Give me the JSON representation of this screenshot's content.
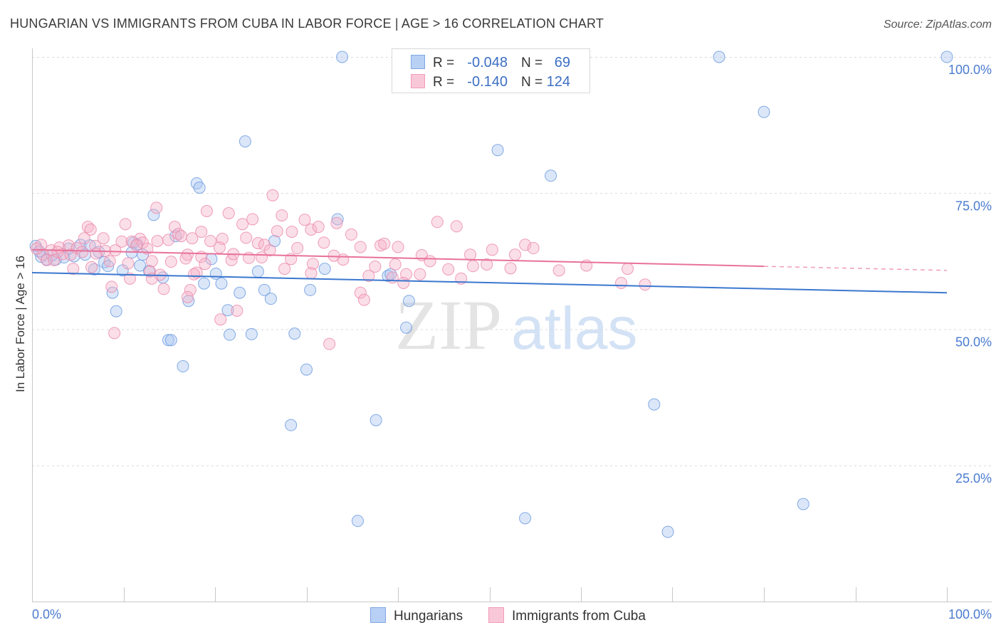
{
  "chart_data": {
    "type": "scatter",
    "title": "HUNGARIAN VS IMMIGRANTS FROM CUBA IN LABOR FORCE | AGE > 16 CORRELATION CHART",
    "source": "Source: ZipAtlas.com",
    "ylabel": "In Labor Force | Age > 16",
    "xlim": [
      0,
      100
    ],
    "ylim": [
      0,
      100
    ],
    "grid": true,
    "x_ticks": [
      10,
      20,
      30,
      40,
      50,
      60,
      70,
      80,
      90,
      100
    ],
    "x_tick_labels": [
      "0.0%",
      "100.0%"
    ],
    "y_ticks": [
      {
        "value": 100,
        "label": "100.0%"
      },
      {
        "value": 75,
        "label": "75.0%"
      },
      {
        "value": 50,
        "label": "50.0%"
      },
      {
        "value": 25,
        "label": "25.0%"
      }
    ],
    "legend": {
      "r_label": "R =",
      "n_label": "N ="
    },
    "watermark": {
      "zip": "ZIP",
      "atlas": "atlas"
    },
    "series": [
      {
        "name": "Hungarians",
        "r": "-0.048",
        "n": "69",
        "color": "#6e9ce0",
        "fill": "#a9c6f0",
        "trend_color": "#3b78cf",
        "trend": {
          "x": [
            0,
            100
          ],
          "y": [
            60.4,
            56.7
          ]
        },
        "points": [
          [
            33.9,
            100
          ],
          [
            75.1,
            100
          ],
          [
            100,
            100
          ],
          [
            80.0,
            89.9
          ],
          [
            50.9,
            82.9
          ],
          [
            23.3,
            84.5
          ],
          [
            56.7,
            78.2
          ],
          [
            18.0,
            76.8
          ],
          [
            18.3,
            76.0
          ],
          [
            13.3,
            71.0
          ],
          [
            33.4,
            70.2
          ],
          [
            26.5,
            66.2
          ],
          [
            0.4,
            65.3
          ],
          [
            5.3,
            65.5
          ],
          [
            6.3,
            65.4
          ],
          [
            7.3,
            64.2
          ],
          [
            11.1,
            65.9
          ],
          [
            11.5,
            65.6
          ],
          [
            10.9,
            64.1
          ],
          [
            12.1,
            63.7
          ],
          [
            15.7,
            67.1
          ],
          [
            1.0,
            63.3
          ],
          [
            1.6,
            62.8
          ],
          [
            2.6,
            62.8
          ],
          [
            3.5,
            63.2
          ],
          [
            4.6,
            63.4
          ],
          [
            5.8,
            63.7
          ],
          [
            7.9,
            62.3
          ],
          [
            8.3,
            61.6
          ],
          [
            6.8,
            61.0
          ],
          [
            9.9,
            60.8
          ],
          [
            11.8,
            61.7
          ],
          [
            12.8,
            60.7
          ],
          [
            14.3,
            59.5
          ],
          [
            19.6,
            62.9
          ],
          [
            20.1,
            60.2
          ],
          [
            18.8,
            58.4
          ],
          [
            20.7,
            58.4
          ],
          [
            24.7,
            60.6
          ],
          [
            32.0,
            61.1
          ],
          [
            38.9,
            59.8
          ],
          [
            8.8,
            56.7
          ],
          [
            22.7,
            56.7
          ],
          [
            25.4,
            57.2
          ],
          [
            26.1,
            55.6
          ],
          [
            30.4,
            57.2
          ],
          [
            17.1,
            55.2
          ],
          [
            41.2,
            55.2
          ],
          [
            9.2,
            53.3
          ],
          [
            21.4,
            53.5
          ],
          [
            14.9,
            48.0
          ],
          [
            15.2,
            48.0
          ],
          [
            21.6,
            49.0
          ],
          [
            24.0,
            49.1
          ],
          [
            28.7,
            49.2
          ],
          [
            40.9,
            50.3
          ],
          [
            16.5,
            43.2
          ],
          [
            30.0,
            42.6
          ],
          [
            28.3,
            32.4
          ],
          [
            37.6,
            33.3
          ],
          [
            68.0,
            36.2
          ],
          [
            35.6,
            14.8
          ],
          [
            53.9,
            15.3
          ],
          [
            69.5,
            12.8
          ],
          [
            84.3,
            17.9
          ],
          [
            0.8,
            64.3
          ],
          [
            2.2,
            63.6
          ],
          [
            4.0,
            64.8
          ],
          [
            39.2,
            60.1
          ]
        ]
      },
      {
        "name": "Immigrants from Cuba",
        "r": "-0.140",
        "n": "124",
        "color": "#ec8cae",
        "fill": "#f5b2c7",
        "trend_color": "#e8729a",
        "trend": {
          "x": [
            0,
            100
          ],
          "y": [
            64.6,
            60.8
          ],
          "solid_until": 80
        },
        "points": [
          [
            26.3,
            74.6
          ],
          [
            13.6,
            72.3
          ],
          [
            19.1,
            71.7
          ],
          [
            21.5,
            71.3
          ],
          [
            24.1,
            70.2
          ],
          [
            27.3,
            70.9
          ],
          [
            29.8,
            70.1
          ],
          [
            33.3,
            69.5
          ],
          [
            44.3,
            69.7
          ],
          [
            46.4,
            68.9
          ],
          [
            10.2,
            69.3
          ],
          [
            6.1,
            68.8
          ],
          [
            6.4,
            68.3
          ],
          [
            15.6,
            68.8
          ],
          [
            18.5,
            67.9
          ],
          [
            20.8,
            66.6
          ],
          [
            23.0,
            69.3
          ],
          [
            28.4,
            67.9
          ],
          [
            30.5,
            68.3
          ],
          [
            31.3,
            68.8
          ],
          [
            34.9,
            67.4
          ],
          [
            16.0,
            67.5
          ],
          [
            16.3,
            67.1
          ],
          [
            17.5,
            66.7
          ],
          [
            5.7,
            66.7
          ],
          [
            7.8,
            66.7
          ],
          [
            9.8,
            66.1
          ],
          [
            11.8,
            66.6
          ],
          [
            14.9,
            66.4
          ],
          [
            13.7,
            66.2
          ],
          [
            12.1,
            65.9
          ],
          [
            10.9,
            66.1
          ],
          [
            23.4,
            66.8
          ],
          [
            24.7,
            65.8
          ],
          [
            25.4,
            65.5
          ],
          [
            31.9,
            65.9
          ],
          [
            35.9,
            65.1
          ],
          [
            38.1,
            65.4
          ],
          [
            38.5,
            65.7
          ],
          [
            40.0,
            65.1
          ],
          [
            53.9,
            65.5
          ],
          [
            54.8,
            64.9
          ],
          [
            50.3,
            64.6
          ],
          [
            4.0,
            65.4
          ],
          [
            4.9,
            64.9
          ],
          [
            2.1,
            64.5
          ],
          [
            3.3,
            63.8
          ],
          [
            8.0,
            64.4
          ],
          [
            9.1,
            64.5
          ],
          [
            20.5,
            65.0
          ],
          [
            17.0,
            63.7
          ],
          [
            18.5,
            63.3
          ],
          [
            23.7,
            63.1
          ],
          [
            25.1,
            63.2
          ],
          [
            21.8,
            62.7
          ],
          [
            18.9,
            62.0
          ],
          [
            10.5,
            62.1
          ],
          [
            13.1,
            62.5
          ],
          [
            15.2,
            62.4
          ],
          [
            28.3,
            62.9
          ],
          [
            34.0,
            62.8
          ],
          [
            42.6,
            63.6
          ],
          [
            47.9,
            63.7
          ],
          [
            52.8,
            63.7
          ],
          [
            39.7,
            61.9
          ],
          [
            49.7,
            61.9
          ],
          [
            48.2,
            61.6
          ],
          [
            60.6,
            61.7
          ],
          [
            30.7,
            62.0
          ],
          [
            27.6,
            61.1
          ],
          [
            30.5,
            60.3
          ],
          [
            18.0,
            60.4
          ],
          [
            17.7,
            60.1
          ],
          [
            12.9,
            60.6
          ],
          [
            6.5,
            61.4
          ],
          [
            4.5,
            61.1
          ],
          [
            52.3,
            61.2
          ],
          [
            57.6,
            60.8
          ],
          [
            65.1,
            61.1
          ],
          [
            45.5,
            61.0
          ],
          [
            40.9,
            60.1
          ],
          [
            42.4,
            60.1
          ],
          [
            36.8,
            59.8
          ],
          [
            46.9,
            59.3
          ],
          [
            39.4,
            59.5
          ],
          [
            10.7,
            59.3
          ],
          [
            13.1,
            59.3
          ],
          [
            40.6,
            58.5
          ],
          [
            64.4,
            58.5
          ],
          [
            67.0,
            58.2
          ],
          [
            8.7,
            57.8
          ],
          [
            14.4,
            57.4
          ],
          [
            17.3,
            57.2
          ],
          [
            35.9,
            56.7
          ],
          [
            36.3,
            55.4
          ],
          [
            17.0,
            55.9
          ],
          [
            22.4,
            53.4
          ],
          [
            20.6,
            51.8
          ],
          [
            9.0,
            49.3
          ],
          [
            32.5,
            47.3
          ],
          [
            1.0,
            65.5
          ],
          [
            1.2,
            63.7
          ],
          [
            1.6,
            62.7
          ],
          [
            2.4,
            62.7
          ],
          [
            4.2,
            63.7
          ],
          [
            6.9,
            65.3
          ],
          [
            5.5,
            64.2
          ],
          [
            11.4,
            65.4
          ],
          [
            0.5,
            64.8
          ],
          [
            3.0,
            65.0
          ],
          [
            7.0,
            63.9
          ],
          [
            12.6,
            64.8
          ],
          [
            14.0,
            60.0
          ],
          [
            26.0,
            64.5
          ],
          [
            33.0,
            63.5
          ],
          [
            19.5,
            66.2
          ],
          [
            22.0,
            63.8
          ],
          [
            8.5,
            62.5
          ],
          [
            37.5,
            61.5
          ],
          [
            43.5,
            62.5
          ],
          [
            2.8,
            64.2
          ],
          [
            26.8,
            68.0
          ],
          [
            16.8,
            63.0
          ],
          [
            29.0,
            64.9
          ]
        ]
      }
    ]
  }
}
